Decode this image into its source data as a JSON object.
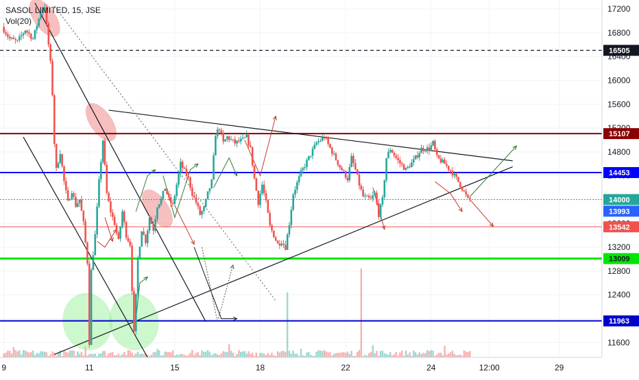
{
  "header": {
    "symbol": "SASOL LIMITED, 15, JSE",
    "vol_label": "Vol(20)"
  },
  "chart_data": {
    "type": "candlestick",
    "title": "SASOL LIMITED, 15, JSE",
    "timeframe": "15",
    "exchange": "JSE",
    "ylim": [
      11350,
      17350
    ],
    "y_ticks": [
      11600,
      12000,
      12400,
      12800,
      13200,
      13600,
      14000,
      14400,
      14800,
      15200,
      15600,
      16000,
      16400,
      16800,
      17200
    ],
    "x_ticks": [
      {
        "label": "9",
        "t": 0
      },
      {
        "label": "11",
        "t": 22
      },
      {
        "label": "15",
        "t": 44
      },
      {
        "label": "18",
        "t": 66
      },
      {
        "label": "22",
        "t": 88
      },
      {
        "label": "24",
        "t": 110
      },
      {
        "label": "12:00",
        "t": 125
      },
      {
        "label": "29",
        "t": 143
      }
    ],
    "t_range": [
      -1,
      154
    ],
    "price_path": [
      [
        0,
        16900
      ],
      [
        2,
        16700
      ],
      [
        4,
        16650
      ],
      [
        6,
        16850
      ],
      [
        8,
        16700
      ],
      [
        10,
        17150
      ],
      [
        11,
        17250
      ],
      [
        12,
        16600
      ],
      [
        12.8,
        16100
      ],
      [
        13.5,
        14950
      ],
      [
        14,
        14500
      ],
      [
        15,
        14800
      ],
      [
        16,
        14300
      ],
      [
        17,
        13950
      ],
      [
        18,
        14150
      ],
      [
        19,
        13900
      ],
      [
        20,
        14000
      ],
      [
        21,
        13600
      ],
      [
        22,
        12950
      ],
      [
        22.5,
        11600
      ],
      [
        23,
        12800
      ],
      [
        24,
        13400
      ],
      [
        25,
        14300
      ],
      [
        26,
        15000
      ],
      [
        27,
        14100
      ],
      [
        28,
        13800
      ],
      [
        29,
        13600
      ],
      [
        30,
        13300
      ],
      [
        31,
        13800
      ],
      [
        32,
        13400
      ],
      [
        33,
        13250
      ],
      [
        34,
        11750
      ],
      [
        35,
        13000
      ],
      [
        36,
        13500
      ],
      [
        37,
        13300
      ],
      [
        38,
        13700
      ],
      [
        39,
        13500
      ],
      [
        40,
        13900
      ],
      [
        41,
        14000
      ],
      [
        42,
        14200
      ],
      [
        43,
        14000
      ],
      [
        44,
        13900
      ],
      [
        46,
        14600
      ],
      [
        48,
        14350
      ],
      [
        49,
        14100
      ],
      [
        50,
        13950
      ],
      [
        51,
        13750
      ],
      [
        52,
        13850
      ],
      [
        53,
        14100
      ],
      [
        54,
        14300
      ],
      [
        55,
        15100
      ],
      [
        56,
        15200
      ],
      [
        57,
        14950
      ],
      [
        58,
        15050
      ],
      [
        60,
        14950
      ],
      [
        62,
        15000
      ],
      [
        63,
        15050
      ],
      [
        64,
        14850
      ],
      [
        65,
        14350
      ],
      [
        66,
        13950
      ],
      [
        67,
        14250
      ],
      [
        68,
        13950
      ],
      [
        69,
        13550
      ],
      [
        70,
        13400
      ],
      [
        71,
        13250
      ],
      [
        72,
        13300
      ],
      [
        73,
        13200
      ],
      [
        74,
        13600
      ],
      [
        75,
        14100
      ],
      [
        77,
        14450
      ],
      [
        79,
        14700
      ],
      [
        81,
        14950
      ],
      [
        83,
        15050
      ],
      [
        85,
        14800
      ],
      [
        87,
        14550
      ],
      [
        89,
        14350
      ],
      [
        90,
        14700
      ],
      [
        91,
        14500
      ],
      [
        92,
        14250
      ],
      [
        93,
        14050
      ],
      [
        95,
        14000
      ],
      [
        96,
        14100
      ],
      [
        97,
        13750
      ],
      [
        98,
        14000
      ],
      [
        99,
        14700
      ],
      [
        100,
        14850
      ],
      [
        102,
        14650
      ],
      [
        104,
        14500
      ],
      [
        106,
        14650
      ],
      [
        108,
        14850
      ],
      [
        110,
        14850
      ],
      [
        111,
        14950
      ],
      [
        112,
        14700
      ],
      [
        114,
        14600
      ],
      [
        116,
        14450
      ],
      [
        118,
        14250
      ],
      [
        120,
        14000
      ]
    ],
    "horizontal_levels": [
      {
        "label": "16505",
        "value": 16505,
        "color": "#131722",
        "style": "dashed"
      },
      {
        "label": "15107",
        "value": 15107,
        "color": "#8b0000",
        "style": "solid"
      },
      {
        "label": "14453",
        "value": 14453,
        "color": "#0000ff",
        "style": "solid"
      },
      {
        "label": "14000",
        "value": 14000,
        "color": "#26a69a",
        "style": "dotted"
      },
      {
        "label": "13993",
        "value": 13993,
        "color": "#2962ff",
        "style": "none"
      },
      {
        "label": "13542",
        "value": 13542,
        "color": "#ef5350",
        "style": "solid"
      },
      {
        "label": "13009",
        "value": 13009,
        "color": "#00e600",
        "style": "solid"
      },
      {
        "label": "11963",
        "value": 11963,
        "color": "#0000cd",
        "style": "solid"
      }
    ],
    "trend_lines": [
      {
        "name": "triangle-upper",
        "t1": 27,
        "v1": 15500,
        "t2": 131,
        "v2": 14650,
        "color": "#131722"
      },
      {
        "name": "triangle-lower",
        "t1": 13,
        "v1": 11400,
        "t2": 131,
        "v2": 14550,
        "color": "#131722"
      },
      {
        "name": "channel-upper",
        "t1": 8,
        "v1": 17300,
        "t2": 52,
        "v2": 11950,
        "color": "#131722"
      },
      {
        "name": "channel-lower",
        "t1": 5,
        "v1": 15050,
        "t2": 37,
        "v2": 11350,
        "color": "#131722"
      }
    ],
    "highlight_ellipses": [
      {
        "t": 10.5,
        "v": 17050,
        "color": "#f08080"
      },
      {
        "t": 25,
        "v": 15300,
        "color": "#f08080"
      },
      {
        "t": 39.5,
        "v": 13850,
        "color": "#f08080"
      },
      {
        "t": 21.5,
        "v": 11950,
        "color": "#90ee90"
      },
      {
        "t": 33.5,
        "v": 11950,
        "color": "#90ee90"
      }
    ],
    "grid": true,
    "price_axis_position": "right"
  }
}
